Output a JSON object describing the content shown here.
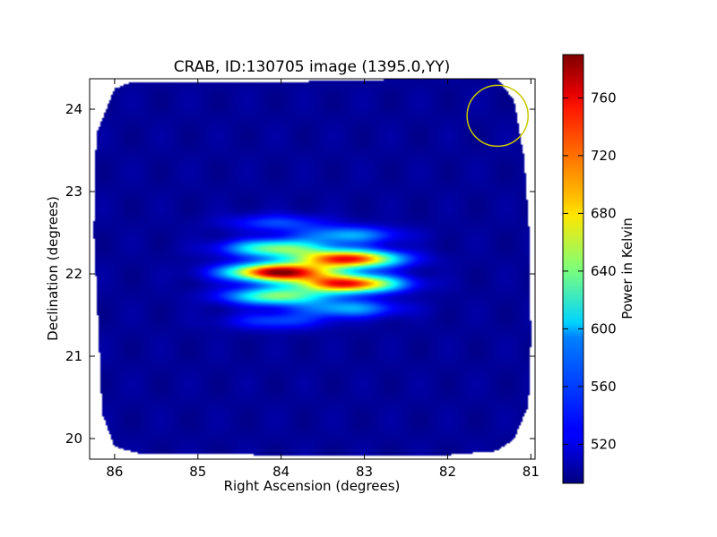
{
  "chart_data": {
    "type": "heatmap",
    "title": "CRAB, ID:130705 image (1395.0,YY)",
    "xlabel": "Right Ascension (degrees)",
    "ylabel": "Declination (degrees)",
    "xlim": [
      86.3,
      80.95
    ],
    "ylim": [
      19.75,
      24.37
    ],
    "x_ticks": [
      86,
      85,
      84,
      83,
      82,
      81
    ],
    "y_ticks": [
      20,
      21,
      22,
      23,
      24
    ],
    "x_tick_labels": [
      "86",
      "85",
      "84",
      "83",
      "82",
      "81"
    ],
    "y_tick_labels": [
      "20",
      "21",
      "22",
      "23",
      "24"
    ],
    "colorbar": {
      "label": "Power in Kelvin",
      "range": [
        493,
        790
      ],
      "ticks": [
        520,
        560,
        600,
        640,
        680,
        720,
        760
      ],
      "tick_labels": [
        "520",
        "560",
        "600",
        "640",
        "680",
        "720",
        "760"
      ],
      "colormap": "jet"
    },
    "background_level": 500,
    "footprint_ra_dec": [
      [
        86.0,
        24.25
      ],
      [
        85.8,
        24.33
      ],
      [
        84.0,
        24.33
      ],
      [
        82.3,
        24.37
      ],
      [
        81.4,
        24.37
      ],
      [
        81.2,
        24.1
      ],
      [
        81.08,
        23.4
      ],
      [
        81.02,
        22.5
      ],
      [
        81.0,
        21.2
      ],
      [
        81.03,
        20.4
      ],
      [
        81.2,
        20.0
      ],
      [
        81.4,
        19.85
      ],
      [
        82.0,
        19.8
      ],
      [
        84.0,
        19.8
      ],
      [
        85.7,
        19.82
      ],
      [
        86.0,
        19.9
      ],
      [
        86.15,
        20.3
      ],
      [
        86.18,
        21.0
      ],
      [
        86.25,
        22.5
      ],
      [
        86.22,
        23.7
      ]
    ],
    "sources": [
      {
        "ra": 84.02,
        "dec": 22.02,
        "power": 785
      },
      {
        "ra": 84.05,
        "dec": 22.31,
        "power": 640
      },
      {
        "ra": 84.05,
        "dec": 21.73,
        "power": 640
      },
      {
        "ra": 84.05,
        "dec": 22.62,
        "power": 550
      },
      {
        "ra": 84.05,
        "dec": 21.43,
        "power": 550
      },
      {
        "ra": 83.2,
        "dec": 22.18,
        "power": 750
      },
      {
        "ra": 83.2,
        "dec": 21.88,
        "power": 750
      },
      {
        "ra": 83.2,
        "dec": 22.47,
        "power": 580
      },
      {
        "ra": 83.2,
        "dec": 21.58,
        "power": 580
      }
    ],
    "beam_marker": {
      "ra": 81.4,
      "dec": 23.92,
      "radius_deg": 0.37,
      "color": "#c8c800"
    },
    "grid": false,
    "legend": "none"
  }
}
